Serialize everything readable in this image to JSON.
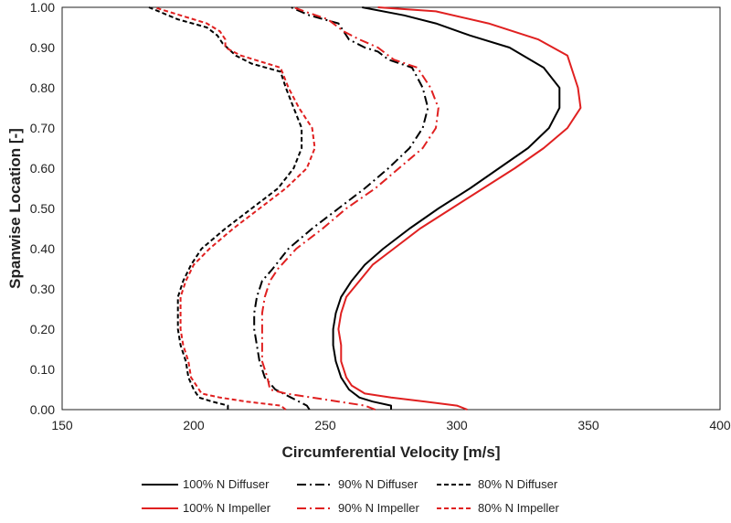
{
  "chart_data": {
    "type": "line",
    "title": "",
    "xlabel": "Circumferential Velocity [m/s]",
    "ylabel": "Spanwise Location [-]",
    "xlim": [
      150,
      400
    ],
    "ylim": [
      0.0,
      1.0
    ],
    "x_ticks": [
      "150",
      "200",
      "250",
      "300",
      "350",
      "400"
    ],
    "y_ticks": [
      "0.00",
      "0.10",
      "0.20",
      "0.30",
      "0.40",
      "0.50",
      "0.60",
      "0.70",
      "0.80",
      "0.90",
      "1.00"
    ],
    "grid": false,
    "legend_position": "bottom",
    "series": [
      {
        "name": "100% N Diffuser",
        "color": "#000000",
        "dash": "solid",
        "points": [
          [
            275,
            0.0
          ],
          [
            275,
            0.01
          ],
          [
            268,
            0.02
          ],
          [
            263,
            0.03
          ],
          [
            259,
            0.05
          ],
          [
            256,
            0.08
          ],
          [
            254,
            0.12
          ],
          [
            253,
            0.16
          ],
          [
            253,
            0.2
          ],
          [
            254,
            0.24
          ],
          [
            256,
            0.28
          ],
          [
            260,
            0.32
          ],
          [
            265,
            0.36
          ],
          [
            272,
            0.4
          ],
          [
            282,
            0.45
          ],
          [
            293,
            0.5
          ],
          [
            305,
            0.55
          ],
          [
            316,
            0.6
          ],
          [
            327,
            0.65
          ],
          [
            335,
            0.7
          ],
          [
            339,
            0.75
          ],
          [
            339,
            0.8
          ],
          [
            333,
            0.85
          ],
          [
            320,
            0.9
          ],
          [
            305,
            0.93
          ],
          [
            292,
            0.96
          ],
          [
            280,
            0.98
          ],
          [
            264,
            1.0
          ]
        ]
      },
      {
        "name": "90% N Diffuser",
        "color": "#000000",
        "dash": "dashdot",
        "points": [
          [
            244,
            0.0
          ],
          [
            243,
            0.01
          ],
          [
            237,
            0.03
          ],
          [
            231,
            0.05
          ],
          [
            227,
            0.08
          ],
          [
            225,
            0.12
          ],
          [
            224,
            0.16
          ],
          [
            223,
            0.2
          ],
          [
            223,
            0.24
          ],
          [
            224,
            0.28
          ],
          [
            226,
            0.32
          ],
          [
            230,
            0.35
          ],
          [
            236,
            0.4
          ],
          [
            245,
            0.45
          ],
          [
            255,
            0.5
          ],
          [
            265,
            0.55
          ],
          [
            274,
            0.6
          ],
          [
            282,
            0.65
          ],
          [
            287,
            0.7
          ],
          [
            289,
            0.75
          ],
          [
            287,
            0.8
          ],
          [
            283,
            0.85
          ],
          [
            274,
            0.87
          ],
          [
            270,
            0.89
          ],
          [
            265,
            0.9
          ],
          [
            259,
            0.92
          ],
          [
            257,
            0.94
          ],
          [
            255,
            0.96
          ],
          [
            244,
            0.98
          ],
          [
            237,
            1.0
          ]
        ]
      },
      {
        "name": "80% N Diffuser",
        "color": "#000000",
        "dash": "dashed",
        "points": [
          [
            213,
            0.0
          ],
          [
            213,
            0.01
          ],
          [
            207,
            0.02
          ],
          [
            202,
            0.03
          ],
          [
            200,
            0.05
          ],
          [
            198,
            0.08
          ],
          [
            197,
            0.12
          ],
          [
            195,
            0.16
          ],
          [
            194,
            0.2
          ],
          [
            194,
            0.24
          ],
          [
            194,
            0.28
          ],
          [
            196,
            0.32
          ],
          [
            199,
            0.36
          ],
          [
            203,
            0.4
          ],
          [
            212,
            0.45
          ],
          [
            222,
            0.5
          ],
          [
            232,
            0.55
          ],
          [
            238,
            0.6
          ],
          [
            241,
            0.65
          ],
          [
            241,
            0.7
          ],
          [
            238,
            0.75
          ],
          [
            235,
            0.8
          ],
          [
            233,
            0.84
          ],
          [
            222,
            0.86
          ],
          [
            216,
            0.88
          ],
          [
            211,
            0.91
          ],
          [
            209,
            0.93
          ],
          [
            205,
            0.95
          ],
          [
            194,
            0.97
          ],
          [
            183,
            1.0
          ]
        ]
      },
      {
        "name": "100% N Impeller",
        "color": "#e02020",
        "dash": "solid",
        "points": [
          [
            304,
            0.0
          ],
          [
            300,
            0.01
          ],
          [
            288,
            0.02
          ],
          [
            275,
            0.03
          ],
          [
            265,
            0.04
          ],
          [
            260,
            0.06
          ],
          [
            258,
            0.08
          ],
          [
            256,
            0.12
          ],
          [
            256,
            0.16
          ],
          [
            255,
            0.2
          ],
          [
            256,
            0.24
          ],
          [
            258,
            0.28
          ],
          [
            263,
            0.32
          ],
          [
            268,
            0.36
          ],
          [
            276,
            0.4
          ],
          [
            286,
            0.45
          ],
          [
            298,
            0.5
          ],
          [
            310,
            0.55
          ],
          [
            322,
            0.6
          ],
          [
            333,
            0.65
          ],
          [
            342,
            0.7
          ],
          [
            347,
            0.75
          ],
          [
            346,
            0.8
          ],
          [
            342,
            0.88
          ],
          [
            331,
            0.92
          ],
          [
            312,
            0.96
          ],
          [
            292,
            0.99
          ],
          [
            270,
            1.0
          ]
        ]
      },
      {
        "name": "90% N Impeller",
        "color": "#e02020",
        "dash": "dashdot",
        "points": [
          [
            269,
            0.0
          ],
          [
            265,
            0.01
          ],
          [
            255,
            0.02
          ],
          [
            245,
            0.03
          ],
          [
            235,
            0.04
          ],
          [
            229,
            0.05
          ],
          [
            228,
            0.08
          ],
          [
            226,
            0.12
          ],
          [
            226,
            0.16
          ],
          [
            226,
            0.2
          ],
          [
            226,
            0.24
          ],
          [
            227,
            0.28
          ],
          [
            229,
            0.32
          ],
          [
            232,
            0.35
          ],
          [
            239,
            0.4
          ],
          [
            249,
            0.45
          ],
          [
            258,
            0.5
          ],
          [
            269,
            0.55
          ],
          [
            278,
            0.6
          ],
          [
            287,
            0.65
          ],
          [
            292,
            0.7
          ],
          [
            293,
            0.75
          ],
          [
            290,
            0.8
          ],
          [
            285,
            0.85
          ],
          [
            276,
            0.87
          ],
          [
            270,
            0.9
          ],
          [
            263,
            0.92
          ],
          [
            257,
            0.94
          ],
          [
            253,
            0.96
          ],
          [
            251,
            0.97
          ],
          [
            242,
            0.99
          ],
          [
            238,
            1.0
          ]
        ]
      },
      {
        "name": "80% N Impeller",
        "color": "#e02020",
        "dash": "dashed",
        "points": [
          [
            235,
            0.0
          ],
          [
            233,
            0.01
          ],
          [
            220,
            0.02
          ],
          [
            210,
            0.03
          ],
          [
            203,
            0.04
          ],
          [
            201,
            0.06
          ],
          [
            199,
            0.08
          ],
          [
            198,
            0.12
          ],
          [
            196,
            0.16
          ],
          [
            195,
            0.2
          ],
          [
            195,
            0.24
          ],
          [
            195,
            0.28
          ],
          [
            197,
            0.32
          ],
          [
            200,
            0.36
          ],
          [
            206,
            0.4
          ],
          [
            215,
            0.45
          ],
          [
            225,
            0.5
          ],
          [
            235,
            0.55
          ],
          [
            243,
            0.6
          ],
          [
            246,
            0.65
          ],
          [
            245,
            0.7
          ],
          [
            240,
            0.75
          ],
          [
            236,
            0.8
          ],
          [
            233,
            0.85
          ],
          [
            218,
            0.88
          ],
          [
            212,
            0.9
          ],
          [
            212,
            0.92
          ],
          [
            210,
            0.94
          ],
          [
            205,
            0.96
          ],
          [
            195,
            0.98
          ],
          [
            185,
            1.0
          ]
        ]
      }
    ]
  }
}
